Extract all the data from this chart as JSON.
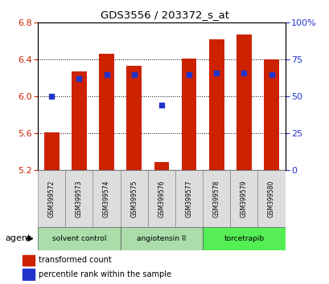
{
  "title": "GDS3556 / 203372_s_at",
  "samples": [
    "GSM399572",
    "GSM399573",
    "GSM399574",
    "GSM399575",
    "GSM399576",
    "GSM399577",
    "GSM399578",
    "GSM399579",
    "GSM399580"
  ],
  "red_values": [
    5.61,
    6.27,
    6.46,
    6.33,
    5.29,
    6.41,
    6.62,
    6.67,
    6.4
  ],
  "blue_values_pct": [
    50,
    62,
    65,
    65,
    44,
    65,
    66,
    66,
    65
  ],
  "y_min": 5.2,
  "y_max": 6.8,
  "y_ticks_left": [
    5.2,
    5.6,
    6.0,
    6.4,
    6.8
  ],
  "y_ticks_right": [
    0,
    25,
    50,
    75,
    100
  ],
  "bar_bottom": 5.2,
  "bar_color": "#cc2200",
  "blue_color": "#2233cc",
  "agent_label": "agent",
  "legend_red": "transformed count",
  "legend_blue": "percentile rank within the sample",
  "bar_width": 0.55,
  "ylabel_left_color": "#cc2200",
  "ylabel_right_color": "#2233cc",
  "group_data": [
    {
      "label": "solvent control",
      "start": 0,
      "end": 2,
      "color": "#aaddaa"
    },
    {
      "label": "angiotensin II",
      "start": 3,
      "end": 5,
      "color": "#aaddaa"
    },
    {
      "label": "torcetrapib",
      "start": 6,
      "end": 8,
      "color": "#55ee55"
    }
  ]
}
